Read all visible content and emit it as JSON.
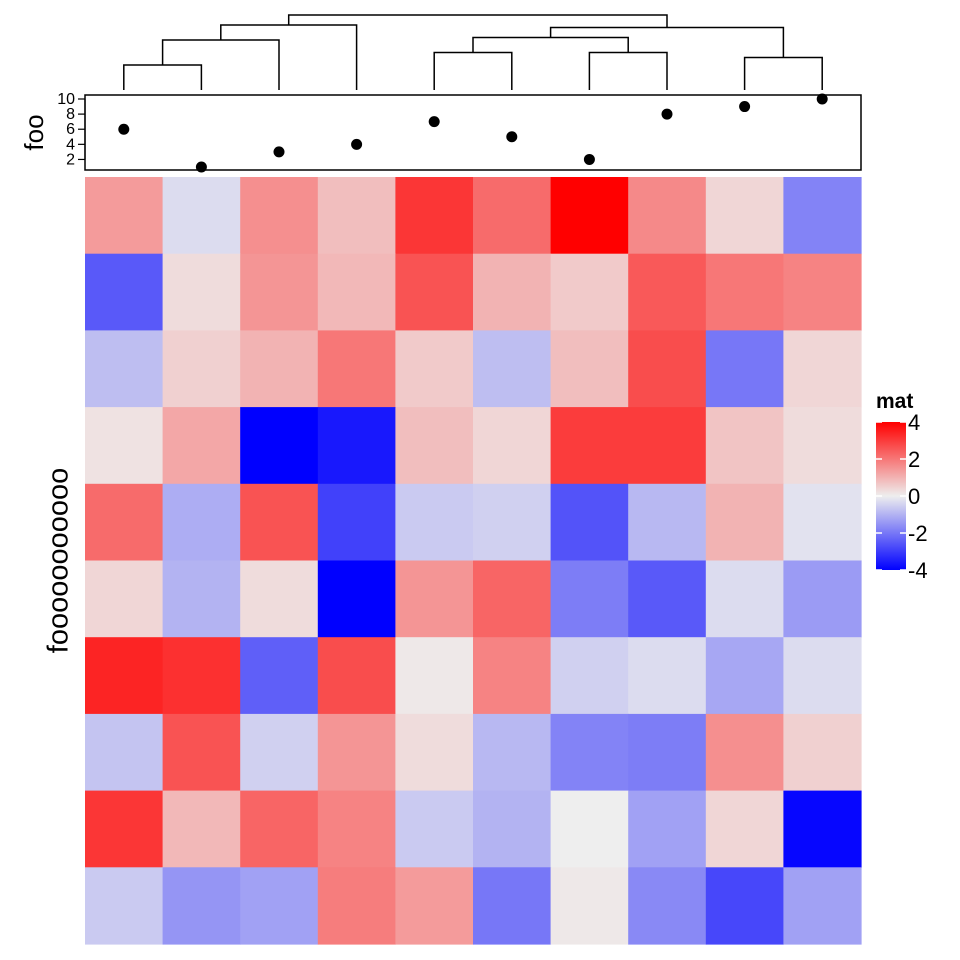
{
  "chart_data": {
    "type": "heatmap",
    "title": "",
    "row_title": "fooooooooooo",
    "rows": 10,
    "columns": 10,
    "values": [
      [
        1.4,
        -0.3,
        1.6,
        0.8,
        3.1,
        2.2,
        4.0,
        1.7,
        0.4,
        -1.8
      ],
      [
        -2.5,
        0.3,
        1.5,
        0.9,
        2.6,
        1.0,
        0.6,
        2.5,
        2.0,
        1.8
      ],
      [
        -0.8,
        0.5,
        1.0,
        2.0,
        0.6,
        -0.8,
        0.8,
        2.7,
        -2.0,
        0.4
      ],
      [
        0.2,
        1.2,
        -4.0,
        -3.6,
        0.8,
        0.4,
        3.0,
        3.0,
        0.7,
        0.3
      ],
      [
        2.2,
        -1.1,
        2.6,
        -2.9,
        -0.6,
        -0.5,
        -2.6,
        -0.9,
        1.0,
        -0.2
      ],
      [
        0.4,
        -1.0,
        0.3,
        -4.5,
        1.5,
        2.3,
        -1.9,
        -2.5,
        -0.3,
        -1.4
      ],
      [
        3.4,
        3.2,
        -2.4,
        2.7,
        0.1,
        1.8,
        -0.5,
        -0.3,
        -1.2,
        -0.3
      ],
      [
        -0.7,
        2.6,
        -0.5,
        1.5,
        0.3,
        -0.9,
        -1.8,
        -1.9,
        1.6,
        0.5
      ],
      [
        3.1,
        0.9,
        2.3,
        1.8,
        -0.6,
        -1.0,
        0.0,
        -1.3,
        0.4,
        -3.9
      ],
      [
        -0.6,
        -1.5,
        -1.3,
        1.9,
        1.4,
        -2.0,
        0.1,
        -1.7,
        -2.8,
        -1.3
      ]
    ],
    "color_scale": {
      "name": "mat",
      "breaks": [
        -4,
        0,
        4
      ],
      "colors": [
        "#0000ff",
        "#eeeeee",
        "#ff0000"
      ],
      "ticks": [
        "4",
        "2",
        "0",
        "-2",
        "-4"
      ],
      "tick_values": [
        4,
        2,
        0,
        -2,
        -4
      ]
    },
    "annotation": {
      "name": "foo",
      "type": "points",
      "values": [
        6,
        1,
        3,
        4,
        7,
        5,
        2,
        8,
        9,
        10
      ],
      "ylim": [
        1,
        10
      ],
      "ticks": [
        "2",
        "4",
        "6",
        "8",
        "10"
      ],
      "tick_values": [
        2,
        4,
        6,
        8,
        10
      ]
    },
    "dendrogram": {
      "column_order_leaves": 10,
      "merges": [
        {
          "left": "leaf:0",
          "right": "leaf:1",
          "height": 1.0
        },
        {
          "left": "leaf:4",
          "right": "leaf:5",
          "height": 1.5
        },
        {
          "left": "leaf:6",
          "right": "leaf:7",
          "height": 1.5
        },
        {
          "left": "leaf:8",
          "right": "leaf:9",
          "height": 1.3
        },
        {
          "left": "node:0",
          "right": "leaf:2",
          "height": 2.0
        },
        {
          "left": "node:4",
          "right": "leaf:3",
          "height": 2.6
        },
        {
          "left": "node:1",
          "right": "node:2",
          "height": 2.1
        },
        {
          "left": "node:6",
          "right": "node:3",
          "height": 2.5
        },
        {
          "left": "node:5",
          "right": "node:7",
          "height": 3.0
        }
      ]
    }
  }
}
